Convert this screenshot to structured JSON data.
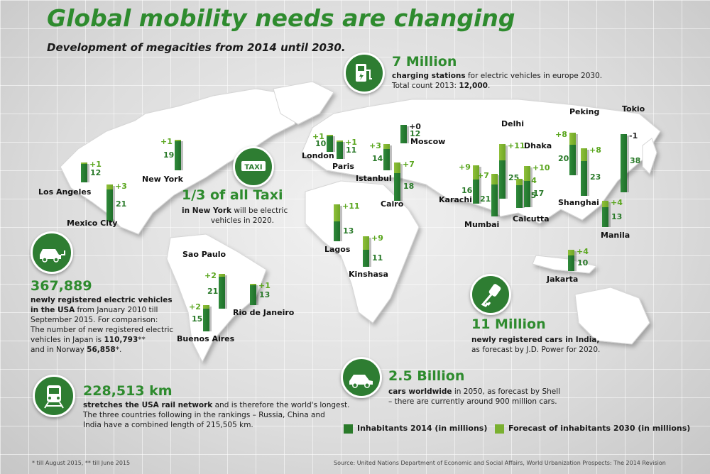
{
  "title": "Global mobility needs are changing",
  "subtitle": "Development of megacities from 2014 until 2030.",
  "facts": {
    "charging": {
      "icon": "charging-station-icon",
      "big": "7 Million",
      "line1_bold": "charging stations",
      "line1_rest": " for electric vehicles in europe 2030.",
      "line2_rest": "Total count 2013: ",
      "line2_bold": "12,000",
      "line2_end": "."
    },
    "taxi": {
      "icon": "taxi-sign-icon",
      "icon_label": "TAXI",
      "big": "1/3 of all Taxi",
      "line1_bold": "in New York",
      "line1_rest": " will be electric",
      "line2": "vehicles in 2020."
    },
    "ev_usa": {
      "icon": "electric-car-icon",
      "big": "367,889",
      "line1_bold": "newly registered electric vehicles",
      "line2_bold": "in the USA",
      "line2_rest": " from January 2010 till",
      "line3": "September 2015. For comparison:",
      "line4": "The number of new registered electric",
      "line5_rest": "vehicles in Japan is ",
      "line5_bold": "110,793",
      "line5_end": "**",
      "line6_rest": "and in Norway ",
      "line6_bold": "56,858",
      "line6_end": "*."
    },
    "rail": {
      "icon": "train-icon",
      "big": "228,513 km",
      "line1_bold": "stretches the USA rail network",
      "line1_rest": " and is therefore the world's longest.",
      "line2": "The three countries following in the rankings – Russia, China and",
      "line3": "India have a combined length of 215,505 km."
    },
    "india": {
      "icon": "car-key-icon",
      "big": "11 Million",
      "line1_bold": "newly registered cars in India,",
      "line2": "as forecast by J.D. Power for 2020."
    },
    "worldwide": {
      "icon": "car-icon",
      "big": "2.5 Billion",
      "line1_bold": "cars worldwide",
      "line1_rest": " in 2050, as forecast by Shell",
      "line2": "– there are currently around 900 million cars."
    }
  },
  "legend": {
    "current": "Inhabitants 2014 (in millions)",
    "forecast": "Forecast of inhabitants 2030 (in millions)"
  },
  "footnote": "* till August 2015, ** till June 2015",
  "source": "Source: United Nations Department of Economic and Social Affairs, World Urbanization Prospects: The 2014 Revision",
  "colors": {
    "current": "#2a7a2a",
    "forecast": "#7ab030",
    "accent": "#2e8b2e"
  },
  "chart_data": {
    "type": "bar",
    "title": "Development of megacities from 2014 until 2030.",
    "series": [
      {
        "name": "Inhabitants 2014 (in millions)"
      },
      {
        "name": "Forecast of inhabitants 2030 (in millions)"
      }
    ],
    "cities": [
      {
        "name": "Los Angeles",
        "value_2014": 12,
        "change_2030": "+1",
        "change_value": 1
      },
      {
        "name": "Mexico City",
        "value_2014": 21,
        "change_2030": "+3",
        "change_value": 3
      },
      {
        "name": "New York",
        "value_2014": 19,
        "change_2030": "+1",
        "change_value": 1
      },
      {
        "name": "Sao Paulo",
        "value_2014": 21,
        "change_2030": "+2",
        "change_value": 2
      },
      {
        "name": "Rio de Janeiro",
        "value_2014": 13,
        "change_2030": "+1",
        "change_value": 1
      },
      {
        "name": "Buenos Aires",
        "value_2014": 15,
        "change_2030": "+2",
        "change_value": 2
      },
      {
        "name": "London",
        "value_2014": 10,
        "change_2030": "+1",
        "change_value": 1
      },
      {
        "name": "Paris",
        "value_2014": 11,
        "change_2030": "+1",
        "change_value": 1
      },
      {
        "name": "Istanbul",
        "value_2014": 14,
        "change_2030": "+3",
        "change_value": 3
      },
      {
        "name": "Moscow",
        "value_2014": 12,
        "change_2030": "+0",
        "change_value": 0
      },
      {
        "name": "Cairo",
        "value_2014": 18,
        "change_2030": "+7",
        "change_value": 7
      },
      {
        "name": "Lagos",
        "value_2014": 13,
        "change_2030": "+11",
        "change_value": 11
      },
      {
        "name": "Kinshasa",
        "value_2014": 11,
        "change_2030": "+9",
        "change_value": 9
      },
      {
        "name": "Karachi",
        "value_2014": 16,
        "change_2030": "+9",
        "change_value": 9
      },
      {
        "name": "Mumbai",
        "value_2014": 21,
        "change_2030": "+7",
        "change_value": 7
      },
      {
        "name": "Delhi",
        "value_2014": 25,
        "change_2030": "+11",
        "change_value": 11
      },
      {
        "name": "Calcutta",
        "value_2014": 15,
        "change_2030": "+4",
        "change_value": 4
      },
      {
        "name": "Dhaka",
        "value_2014": 17,
        "change_2030": "+10",
        "change_value": 10
      },
      {
        "name": "Peking",
        "value_2014": 20,
        "change_2030": "+8",
        "change_value": 8
      },
      {
        "name": "Shanghai",
        "value_2014": 23,
        "change_2030": "+8",
        "change_value": 8
      },
      {
        "name": "Tokio",
        "value_2014": 38,
        "change_2030": "-1",
        "change_value": -1
      },
      {
        "name": "Manila",
        "value_2014": 13,
        "change_2030": "+4",
        "change_value": 4
      },
      {
        "name": "Jakarta",
        "value_2014": 10,
        "change_2030": "+4",
        "change_value": 4
      }
    ]
  }
}
